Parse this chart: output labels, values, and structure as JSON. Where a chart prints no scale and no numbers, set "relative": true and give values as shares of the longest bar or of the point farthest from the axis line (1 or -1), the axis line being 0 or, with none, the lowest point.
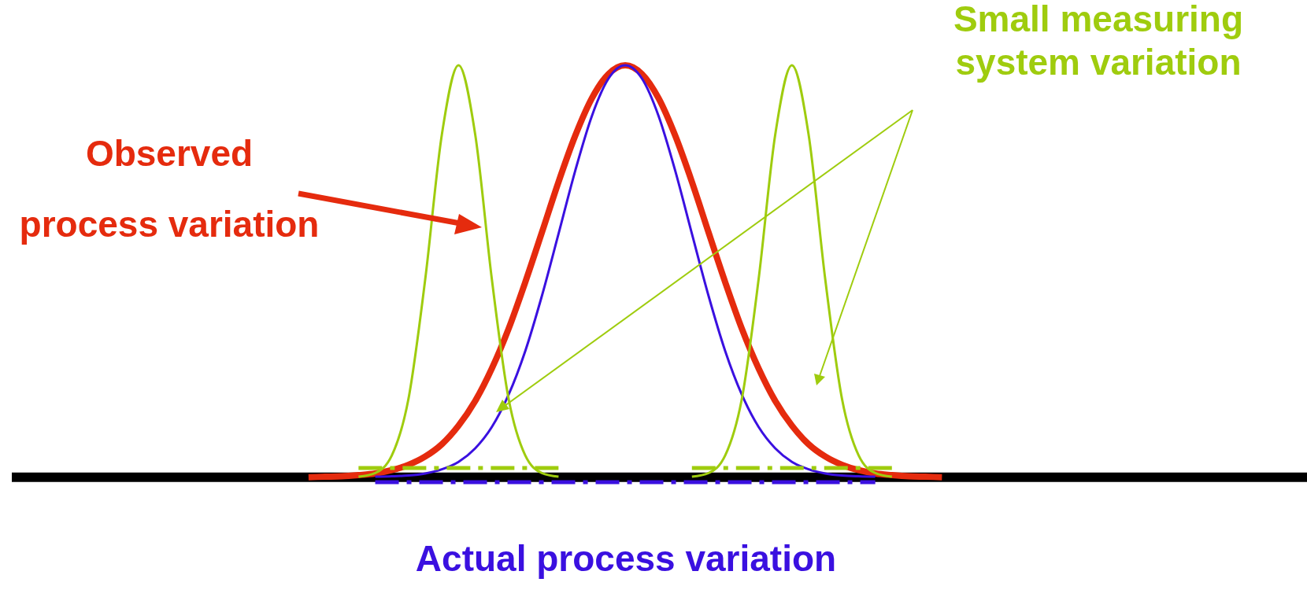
{
  "chart_data": {
    "type": "line",
    "relative": true,
    "marker": "none",
    "categories": [
      null,
      null,
      null,
      null,
      null,
      null,
      null,
      null,
      null,
      null,
      null,
      null,
      null,
      null,
      null,
      null,
      null,
      null,
      null,
      null,
      null,
      null,
      null,
      null,
      null,
      null,
      null,
      null,
      null,
      null,
      null,
      null,
      null,
      null,
      null,
      null,
      null,
      null,
      null
    ],
    "series": [
      {
        "color": "#e52b0e",
        "values": [
          0,
          0.001,
          0.002,
          0.005,
          0.009,
          0.017,
          0.03,
          0.05,
          0.08,
          0.125,
          0.185,
          0.264,
          0.36,
          0.473,
          0.594,
          0.717,
          0.829,
          0.92,
          0.979,
          1,
          0.979,
          0.92,
          0.829,
          0.717,
          0.594,
          0.473,
          0.36,
          0.264,
          0.185,
          0.125,
          0.08,
          0.05,
          0.03,
          0.017,
          0.009,
          0.005,
          0.002,
          0.001,
          0
        ]
      },
      {
        "color": "#3a10e0",
        "values": [
          null,
          null,
          null,
          null,
          0.001,
          0.002,
          0.004,
          0.009,
          0.019,
          0.037,
          0.07,
          0.122,
          0.2,
          0.306,
          0.44,
          0.591,
          0.744,
          0.877,
          0.968,
          1,
          0.968,
          0.877,
          0.744,
          0.591,
          0.44,
          0.306,
          0.2,
          0.122,
          0.07,
          0.037,
          0.019,
          0.009,
          0.004,
          0.002,
          0.001,
          null,
          null,
          null,
          null
        ]
      },
      {
        "color": "#9fcc0e",
        "values": [
          null,
          null,
          null,
          0.001,
          0.01,
          0.053,
          0.191,
          0.48,
          0.832,
          1,
          0.832,
          0.48,
          0.191,
          0.053,
          0.01,
          0.001,
          null,
          null,
          null,
          null,
          null,
          null,
          null,
          null,
          null,
          null,
          null,
          null,
          null,
          null,
          null,
          null,
          null,
          null,
          null,
          null,
          null,
          null,
          null
        ]
      },
      {
        "color": "#9fcc0e",
        "values": [
          null,
          null,
          null,
          null,
          null,
          null,
          null,
          null,
          null,
          null,
          null,
          null,
          null,
          null,
          null,
          null,
          null,
          null,
          null,
          null,
          null,
          null,
          null,
          0.001,
          0.01,
          0.053,
          0.191,
          0.48,
          0.832,
          1,
          0.832,
          0.48,
          0.191,
          0.053,
          0.01,
          0.001,
          null,
          null,
          null
        ]
      },
      {
        "color": "#9fcc0e",
        "line_style": "dashed",
        "values": [
          null,
          null,
          null,
          0.022,
          0.022,
          0.022,
          0.022,
          0.022,
          0.022,
          0.022,
          0.022,
          0.022,
          0.022,
          0.022,
          0.022,
          0.022,
          null,
          null,
          null,
          null,
          null,
          null,
          null,
          null,
          null,
          null,
          null,
          null,
          null,
          null,
          null,
          null,
          null,
          null,
          null,
          null,
          null,
          null,
          null
        ]
      },
      {
        "color": "#9fcc0e",
        "line_style": "dashed",
        "values": [
          null,
          null,
          null,
          null,
          null,
          null,
          null,
          null,
          null,
          null,
          null,
          null,
          null,
          null,
          null,
          null,
          null,
          null,
          null,
          null,
          null,
          null,
          null,
          0.022,
          0.022,
          0.022,
          0.022,
          0.022,
          0.022,
          0.022,
          0.022,
          0.022,
          0.022,
          0.022,
          0.022,
          0.022,
          null,
          null,
          null
        ]
      },
      {
        "color": "#3a10e0",
        "line_style": "dashed",
        "values": [
          null,
          null,
          null,
          null,
          -0.012,
          -0.012,
          -0.012,
          -0.012,
          -0.012,
          -0.012,
          -0.012,
          -0.012,
          -0.012,
          -0.012,
          -0.012,
          -0.012,
          -0.012,
          -0.012,
          -0.012,
          -0.012,
          -0.012,
          -0.012,
          -0.012,
          -0.012,
          -0.012,
          -0.012,
          -0.012,
          -0.012,
          -0.012,
          -0.012,
          -0.012,
          -0.012,
          -0.012,
          -0.012,
          -0.012,
          null,
          null,
          null,
          null
        ]
      }
    ],
    "annotations": [
      "Observed process variation",
      "Small measuring system variation",
      "Actual process variation"
    ]
  }
}
